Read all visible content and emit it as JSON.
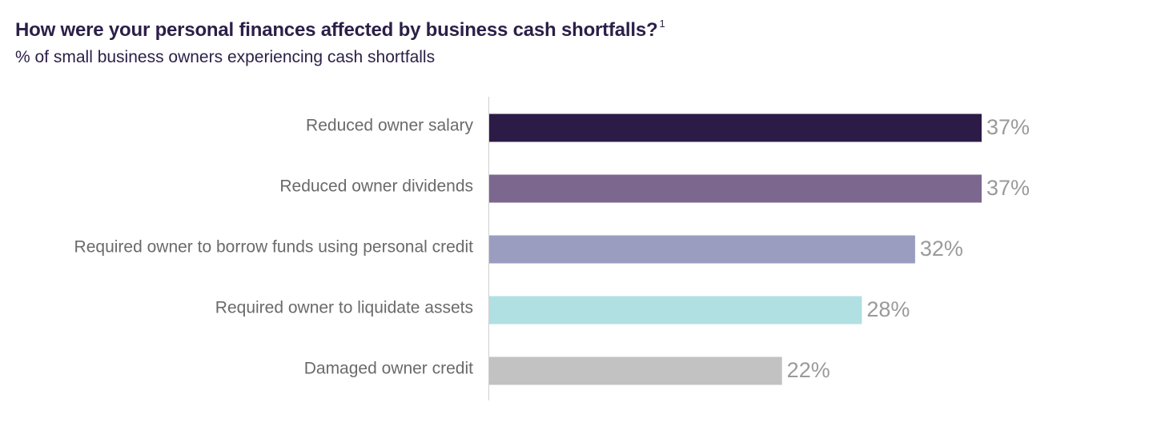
{
  "title": "How were your personal finances affected by business cash shortfalls?",
  "title_footnote": "1",
  "subtitle": "% of small business owners experiencing cash shortfalls",
  "colors": {
    "title": "#2c1f47",
    "axis": "#cfcfcf"
  },
  "chart_data": {
    "type": "bar",
    "orientation": "horizontal",
    "title": "How were your personal finances affected by business cash shortfalls?",
    "subtitle": "% of small business owners experiencing cash shortfalls",
    "xlabel": "",
    "ylabel": "",
    "xlim": [
      0,
      37
    ],
    "grid": false,
    "legend": "none",
    "categories": [
      "Reduced owner salary",
      "Reduced owner dividends",
      "Required owner to borrow funds using personal credit",
      "Required owner to liquidate assets",
      "Damaged owner credit"
    ],
    "values": [
      37,
      37,
      32,
      28,
      22
    ],
    "value_labels": [
      "37%",
      "37%",
      "32%",
      "28%",
      "22%"
    ],
    "bar_colors": [
      "#2d1b47",
      "#7c678f",
      "#9a9dc0",
      "#b0e0e2",
      "#c2c2c2"
    ]
  }
}
